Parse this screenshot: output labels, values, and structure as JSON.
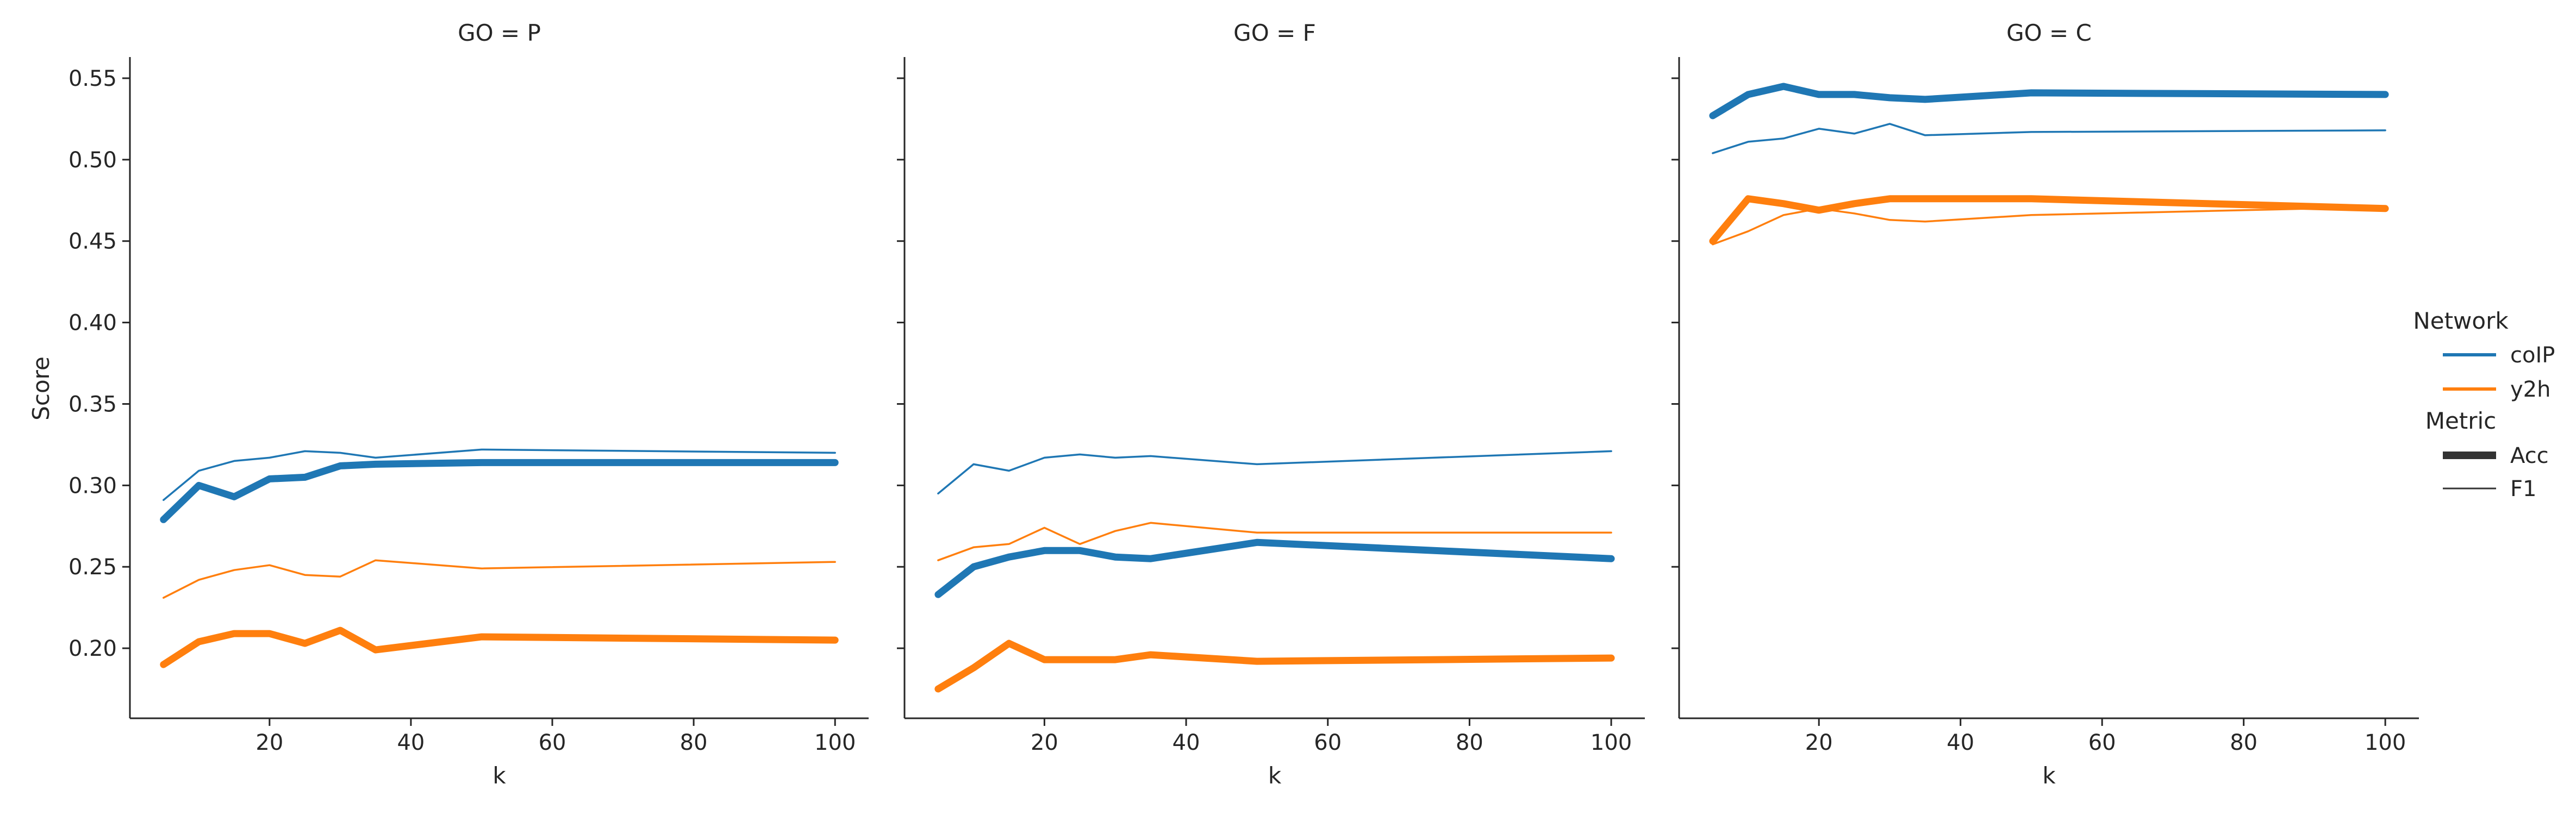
{
  "chart_data": {
    "type": "line",
    "ylabel": "Score",
    "xlabel": "k",
    "ylim": [
      0.157,
      0.563
    ],
    "xlim": [
      0.25,
      104.75
    ],
    "yticks": [
      0.2,
      0.25,
      0.3,
      0.35,
      0.4,
      0.45,
      0.5,
      0.55
    ],
    "ytick_labels": [
      "0.20",
      "0.25",
      "0.30",
      "0.35",
      "0.40",
      "0.45",
      "0.50",
      "0.55"
    ],
    "xticks": [
      20,
      40,
      60,
      80,
      100
    ],
    "xtick_labels": [
      "20",
      "40",
      "60",
      "80",
      "100"
    ],
    "x": [
      5,
      10,
      15,
      20,
      25,
      30,
      35,
      50,
      100
    ],
    "panels": [
      {
        "title": "GO = P",
        "series": [
          {
            "network": "coIP",
            "metric": "Acc",
            "values": [
              0.279,
              0.3,
              0.293,
              0.304,
              0.305,
              0.312,
              0.313,
              0.314,
              0.314
            ]
          },
          {
            "network": "coIP",
            "metric": "F1",
            "values": [
              0.291,
              0.309,
              0.315,
              0.317,
              0.321,
              0.32,
              0.317,
              0.322,
              0.32
            ]
          },
          {
            "network": "y2h",
            "metric": "Acc",
            "values": [
              0.19,
              0.204,
              0.209,
              0.209,
              0.203,
              0.211,
              0.199,
              0.207,
              0.205
            ]
          },
          {
            "network": "y2h",
            "metric": "F1",
            "values": [
              0.231,
              0.242,
              0.248,
              0.251,
              0.245,
              0.244,
              0.254,
              0.249,
              0.253
            ]
          }
        ]
      },
      {
        "title": "GO = F",
        "series": [
          {
            "network": "coIP",
            "metric": "Acc",
            "values": [
              0.233,
              0.25,
              0.256,
              0.26,
              0.26,
              0.256,
              0.255,
              0.265,
              0.255
            ]
          },
          {
            "network": "coIP",
            "metric": "F1",
            "values": [
              0.295,
              0.313,
              0.309,
              0.317,
              0.319,
              0.317,
              0.318,
              0.313,
              0.321
            ]
          },
          {
            "network": "y2h",
            "metric": "Acc",
            "values": [
              0.175,
              0.188,
              0.203,
              0.193,
              0.193,
              0.193,
              0.196,
              0.192,
              0.194
            ]
          },
          {
            "network": "y2h",
            "metric": "F1",
            "values": [
              0.254,
              0.262,
              0.264,
              0.274,
              0.264,
              0.272,
              0.277,
              0.271,
              0.271
            ]
          }
        ]
      },
      {
        "title": "GO = C",
        "series": [
          {
            "network": "coIP",
            "metric": "Acc",
            "values": [
              0.527,
              0.54,
              0.545,
              0.54,
              0.54,
              0.538,
              0.537,
              0.541,
              0.54
            ]
          },
          {
            "network": "coIP",
            "metric": "F1",
            "values": [
              0.504,
              0.511,
              0.513,
              0.519,
              0.516,
              0.522,
              0.515,
              0.517,
              0.518
            ]
          },
          {
            "network": "y2h",
            "metric": "Acc",
            "values": [
              0.45,
              0.476,
              0.473,
              0.469,
              0.473,
              0.476,
              0.476,
              0.476,
              0.47
            ]
          },
          {
            "network": "y2h",
            "metric": "F1",
            "values": [
              0.448,
              0.456,
              0.466,
              0.47,
              0.467,
              0.463,
              0.462,
              0.466,
              0.471
            ]
          }
        ]
      }
    ],
    "legend": {
      "placement": "right",
      "network_title": "Network",
      "network_entries": [
        "coIP",
        "y2h"
      ],
      "metric_title": "Metric",
      "metric_entries": [
        "Acc",
        "F1"
      ]
    },
    "colors": {
      "coIP": "#1f77b4",
      "y2h": "#ff7f0e",
      "legend_metric": "#333333",
      "axis": "#262626"
    },
    "grid": false
  }
}
